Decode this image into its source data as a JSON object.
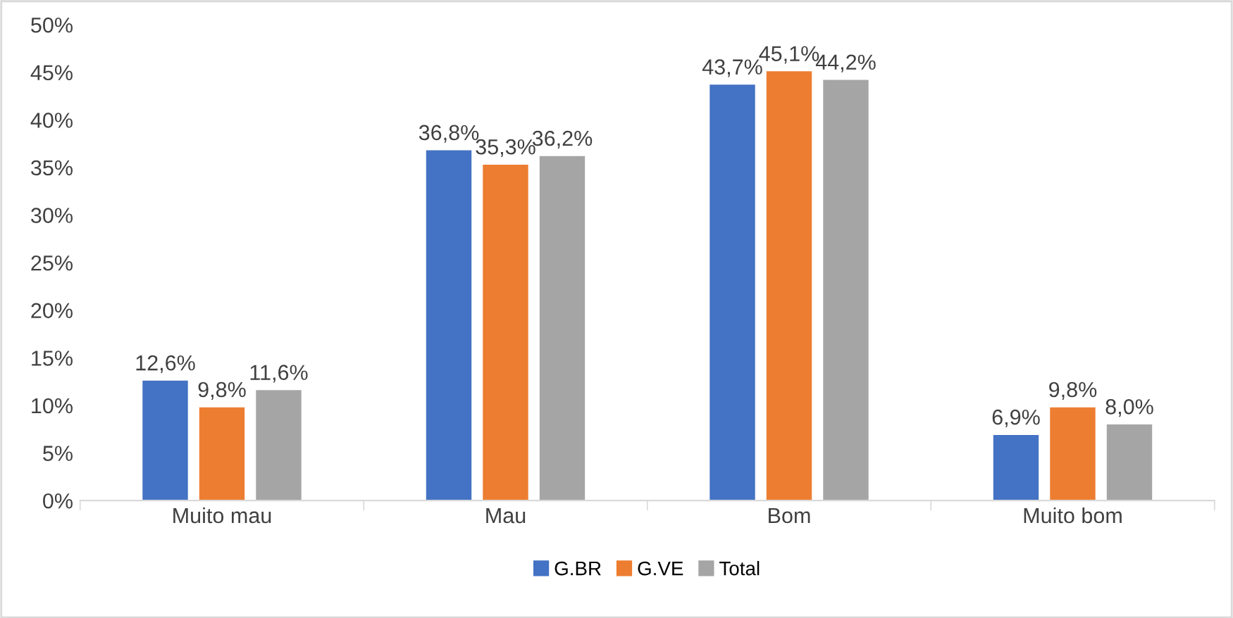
{
  "chart_data": {
    "type": "bar",
    "categories": [
      "Muito mau",
      "Mau",
      "Bom",
      "Muito bom"
    ],
    "series": [
      {
        "name": "G.BR",
        "color": "#4472c4",
        "values": [
          12.6,
          36.8,
          43.7,
          6.9
        ],
        "value_labels": [
          "12,6%",
          "36,8%",
          "43,7%",
          "6,9%"
        ]
      },
      {
        "name": "G.VE",
        "color": "#ed7d31",
        "values": [
          9.8,
          35.3,
          45.1,
          9.8
        ],
        "value_labels": [
          "9,8%",
          "35,3%",
          "45,1%",
          "9,8%"
        ]
      },
      {
        "name": "Total",
        "color": "#a5a5a5",
        "values": [
          11.6,
          36.2,
          44.2,
          8.0
        ],
        "value_labels": [
          "11,6%",
          "36,2%",
          "44,2%",
          "8,0%"
        ]
      }
    ],
    "ylim": [
      0,
      50
    ],
    "yticks": [
      {
        "value": 0,
        "label": "0%"
      },
      {
        "value": 5,
        "label": "5%"
      },
      {
        "value": 10,
        "label": "10%"
      },
      {
        "value": 15,
        "label": "15%"
      },
      {
        "value": 20,
        "label": "20%"
      },
      {
        "value": 25,
        "label": "25%"
      },
      {
        "value": 30,
        "label": "30%"
      },
      {
        "value": 35,
        "label": "35%"
      },
      {
        "value": 40,
        "label": "40%"
      },
      {
        "value": 45,
        "label": "45%"
      },
      {
        "value": 50,
        "label": "50%"
      }
    ],
    "legend": "bottom",
    "grid": false
  }
}
